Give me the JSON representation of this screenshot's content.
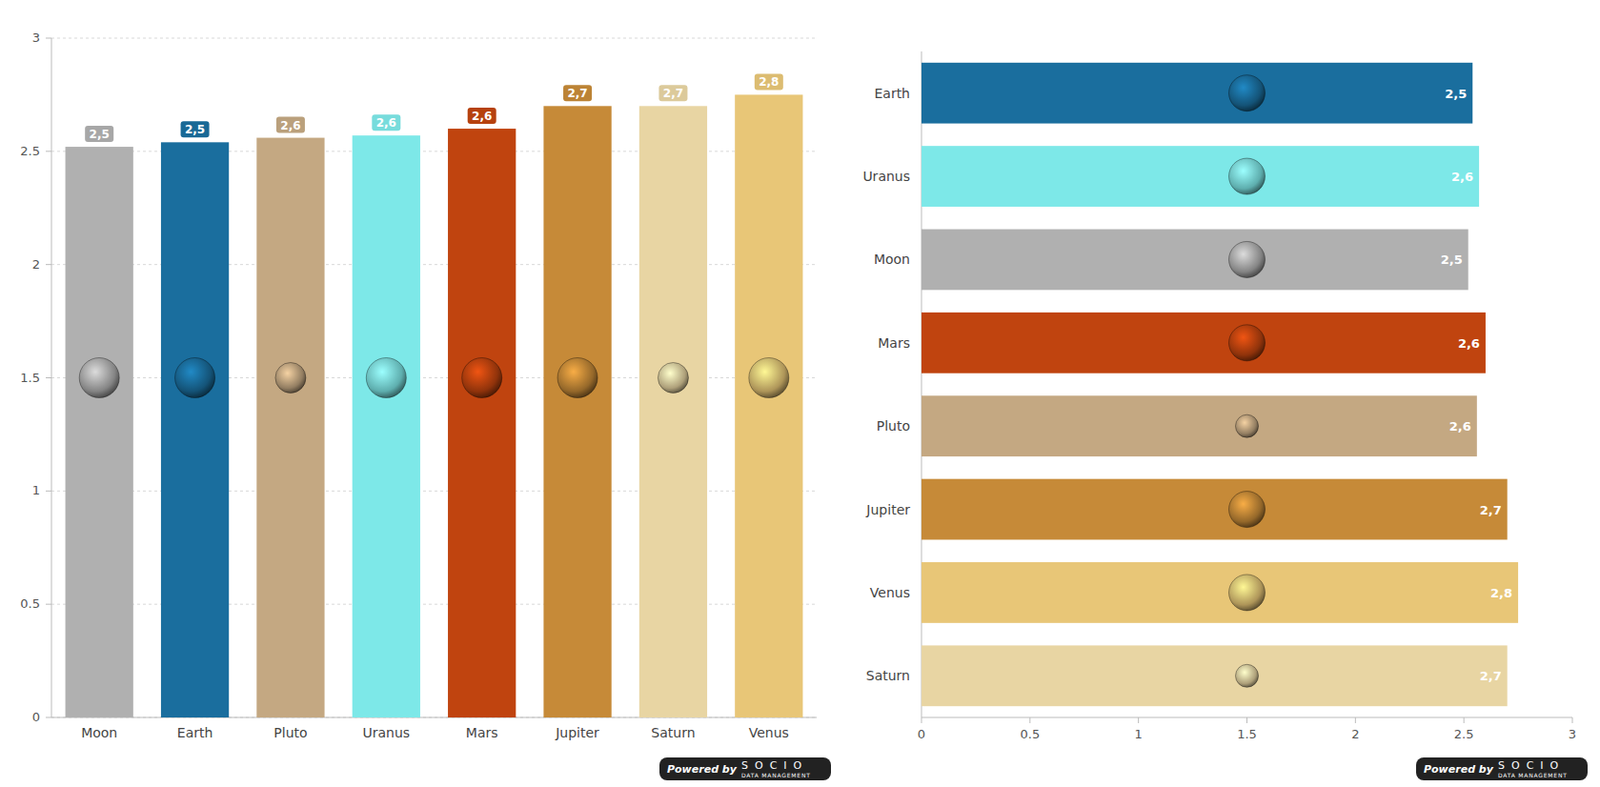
{
  "chart_data": [
    {
      "type": "bar",
      "categories": [
        "Moon",
        "Earth",
        "Pluto",
        "Uranus",
        "Mars",
        "Jupiter",
        "Saturn",
        "Venus"
      ],
      "values": [
        2.52,
        2.54,
        2.56,
        2.57,
        2.6,
        2.7,
        2.7,
        2.75
      ],
      "value_labels": [
        "2,5",
        "2,5",
        "2,6",
        "2,6",
        "2,6",
        "2,7",
        "2,7",
        "2,8"
      ],
      "colors": [
        "#b0b0b0",
        "#1a6e9e",
        "#c4a882",
        "#7de8e8",
        "#c0440f",
        "#c68a38",
        "#e8d5a3",
        "#e8c677"
      ],
      "ylim": [
        0,
        3
      ],
      "yticks": [
        0,
        0.5,
        1,
        1.5,
        2,
        2.5,
        3
      ],
      "grid": true,
      "data_labels": true,
      "annotations": [
        "Powered by",
        "SOCIO",
        "DATA MANAGEMENT"
      ]
    },
    {
      "type": "bar",
      "orientation": "horizontal",
      "categories": [
        "Earth",
        "Uranus",
        "Moon",
        "Mars",
        "Pluto",
        "Jupiter",
        "Venus",
        "Saturn"
      ],
      "values": [
        2.54,
        2.57,
        2.52,
        2.6,
        2.56,
        2.7,
        2.75,
        2.7
      ],
      "value_labels": [
        "2,5",
        "2,6",
        "2,5",
        "2,6",
        "2,6",
        "2,7",
        "2,8",
        "2,7"
      ],
      "colors": [
        "#1a6e9e",
        "#7de8e8",
        "#b0b0b0",
        "#c0440f",
        "#c4a882",
        "#c68a38",
        "#e8c677",
        "#e8d5a3"
      ],
      "xlim": [
        0,
        3
      ],
      "xticks": [
        0,
        0.5,
        1,
        1.5,
        2,
        2.5,
        3
      ],
      "grid": false,
      "data_labels": true,
      "annotations": [
        "Powered by",
        "SOCIO",
        "DATA MANAGEMENT"
      ]
    }
  ]
}
